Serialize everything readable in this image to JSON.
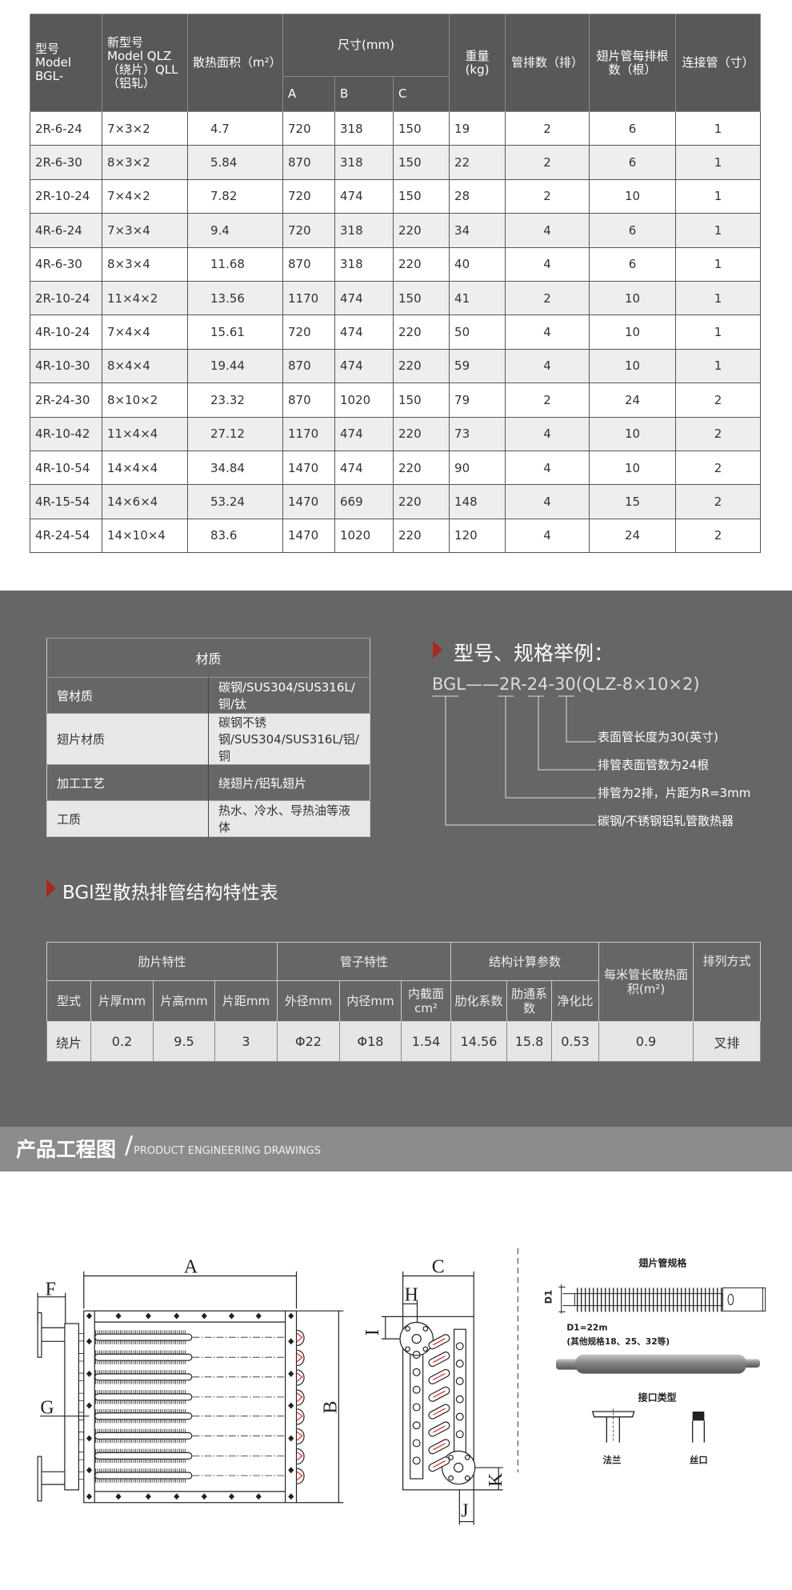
{
  "spec_table": {
    "headers": {
      "model": "型号 Model BGL-",
      "new_model": "新型号 Model QLZ（绕片）QLL（铝轧）",
      "area": "散热面积（m²）",
      "size": "尺寸(mm)",
      "a": "A",
      "b": "B",
      "c": "C",
      "weight": "重量 (kg)",
      "rows": "管排数（排）",
      "tubes": "翅片管每排根数（根）",
      "conn": "连接管（寸）"
    },
    "rows": [
      [
        "2R-6-24",
        "7×3×2",
        "4.7",
        "720",
        "318",
        "150",
        "19",
        "2",
        "6",
        "1"
      ],
      [
        "2R-6-30",
        "8×3×2",
        "5.84",
        "870",
        "318",
        "150",
        "22",
        "2",
        "6",
        "1"
      ],
      [
        "2R-10-24",
        "7×4×2",
        "7.82",
        "720",
        "474",
        "150",
        "28",
        "2",
        "10",
        "1"
      ],
      [
        "4R-6-24",
        "7×3×4",
        "9.4",
        "720",
        "318",
        "220",
        "34",
        "4",
        "6",
        "1"
      ],
      [
        "4R-6-30",
        "8×3×4",
        "11.68",
        "870",
        "318",
        "220",
        "40",
        "4",
        "6",
        "1"
      ],
      [
        "2R-10-24",
        "11×4×2",
        "13.56",
        "1170",
        "474",
        "150",
        "41",
        "2",
        "10",
        "1"
      ],
      [
        "4R-10-24",
        "7×4×4",
        "15.61",
        "720",
        "474",
        "220",
        "50",
        "4",
        "10",
        "1"
      ],
      [
        "4R-10-30",
        "8×4×4",
        "19.44",
        "870",
        "474",
        "220",
        "59",
        "4",
        "10",
        "1"
      ],
      [
        "2R-24-30",
        "8×10×2",
        "23.32",
        "870",
        "1020",
        "150",
        "79",
        "2",
        "24",
        "2"
      ],
      [
        "4R-10-42",
        "11×4×4",
        "27.12",
        "1170",
        "474",
        "220",
        "73",
        "4",
        "10",
        "2"
      ],
      [
        "4R-10-54",
        "14×4×4",
        "34.84",
        "1470",
        "474",
        "220",
        "90",
        "4",
        "10",
        "2"
      ],
      [
        "4R-15-54",
        "14×6×4",
        "53.24",
        "1470",
        "669",
        "220",
        "148",
        "4",
        "15",
        "2"
      ],
      [
        "4R-24-54",
        "14×10×4",
        "83.6",
        "1470",
        "1020",
        "220",
        "120",
        "4",
        "24",
        "2"
      ]
    ]
  },
  "material": {
    "title": "材质",
    "rows": [
      {
        "k": "管材质",
        "v": "碳钢/SUS304/SUS316L/铜/钛"
      },
      {
        "k": "翅片材质",
        "v": "碳钢不锈钢/SUS304/SUS316L/铝/铜"
      },
      {
        "k": "加工工艺",
        "v": "绕翅片/铝轧翅片"
      },
      {
        "k": "工质",
        "v": "热水、冷水、导热油等液体"
      }
    ]
  },
  "example": {
    "title": "型号、规格举例：",
    "code": "BGL——2R-24-30(QLZ-8×10×2)",
    "notes": [
      "表面管长度为30(英寸)",
      "排管表面管数为24根",
      "排管为2排，片距为R=3mm",
      "碳钢/不锈钢铝轧管散热器"
    ]
  },
  "structure": {
    "title": "BGl型散热排管结构特性表",
    "groups": [
      "肋片特性",
      "管子特性",
      "结构计算参数",
      "每米管长散热面积(m²)",
      "排列方式"
    ],
    "cols": [
      "型式",
      "片厚mm",
      "片高mm",
      "片距mm",
      "外径mm",
      "内径mm",
      "内截面cm²",
      "肋化系数",
      "肋通系数",
      "净化比"
    ],
    "values": [
      "绕片",
      "0.2",
      "9.5",
      "3",
      "Φ22",
      "Φ18",
      "1.54",
      "14.56",
      "15.8",
      "0.53",
      "0.9",
      "叉排"
    ]
  },
  "banner": {
    "cn": "产品工程图",
    "slash": "/",
    "en": "PRODUCT ENGINEERING DRAWINGS"
  },
  "drawing": {
    "labels": {
      "a": "A",
      "b": "B",
      "c": "C",
      "f": "F",
      "g": "G",
      "h": "H",
      "i": "I",
      "j": "J",
      "k": "K"
    },
    "fin_title": "翅片管规格",
    "d1": "D1",
    "d1_value": "D1=22m",
    "d1_other": "(其他规格18、25、32等)",
    "port_title": "接口类型",
    "flange": "法兰",
    "thread": "丝口"
  },
  "colors": {
    "header": "#595757",
    "section_bg": "#666666",
    "banner": "#8c8c8c",
    "accent": "#a52a1e"
  }
}
